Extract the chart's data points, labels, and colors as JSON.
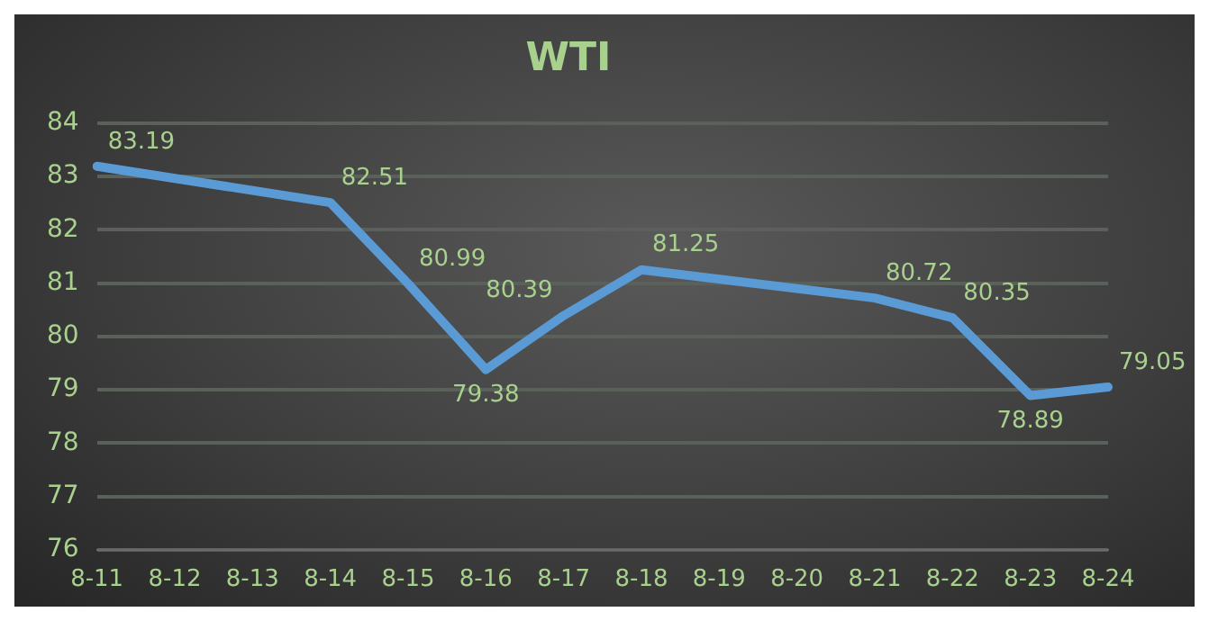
{
  "chart_data": {
    "type": "line",
    "title": "WTI",
    "categories": [
      "8-11",
      "8-12",
      "8-13",
      "8-14",
      "8-15",
      "8-16",
      "8-17",
      "8-18",
      "8-19",
      "8-20",
      "8-21",
      "8-22",
      "8-23",
      "8-24"
    ],
    "series": [
      {
        "color": "#5b9bd5",
        "values": [
          83.19,
          null,
          null,
          82.51,
          80.99,
          79.38,
          80.39,
          81.25,
          null,
          null,
          80.72,
          80.35,
          78.89,
          79.05
        ]
      }
    ],
    "ylim": [
      76,
      84
    ],
    "yticks": [
      76,
      77,
      78,
      79,
      80,
      81,
      82,
      83,
      84
    ],
    "grid": "y",
    "legend": false,
    "marker": "none",
    "line_style": "solid",
    "data_labels": true
  }
}
